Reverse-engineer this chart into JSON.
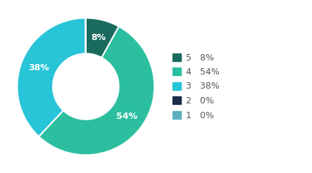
{
  "labels": [
    "5",
    "4",
    "3",
    "2",
    "1"
  ],
  "values": [
    8,
    54,
    38,
    0.0001,
    0.0001
  ],
  "colors": [
    "#1a6b5e",
    "#2bbfa0",
    "#28c4d8",
    "#1a2d4a",
    "#5bafc0"
  ],
  "legend_labels": [
    "5   8%",
    "4   54%",
    "3   38%",
    "2   0%",
    "1   0%"
  ],
  "wedge_labels": [
    "8%",
    "54%",
    "38%",
    "",
    ""
  ],
  "background_color": "#ffffff",
  "label_fontsize": 9,
  "legend_fontsize": 9
}
